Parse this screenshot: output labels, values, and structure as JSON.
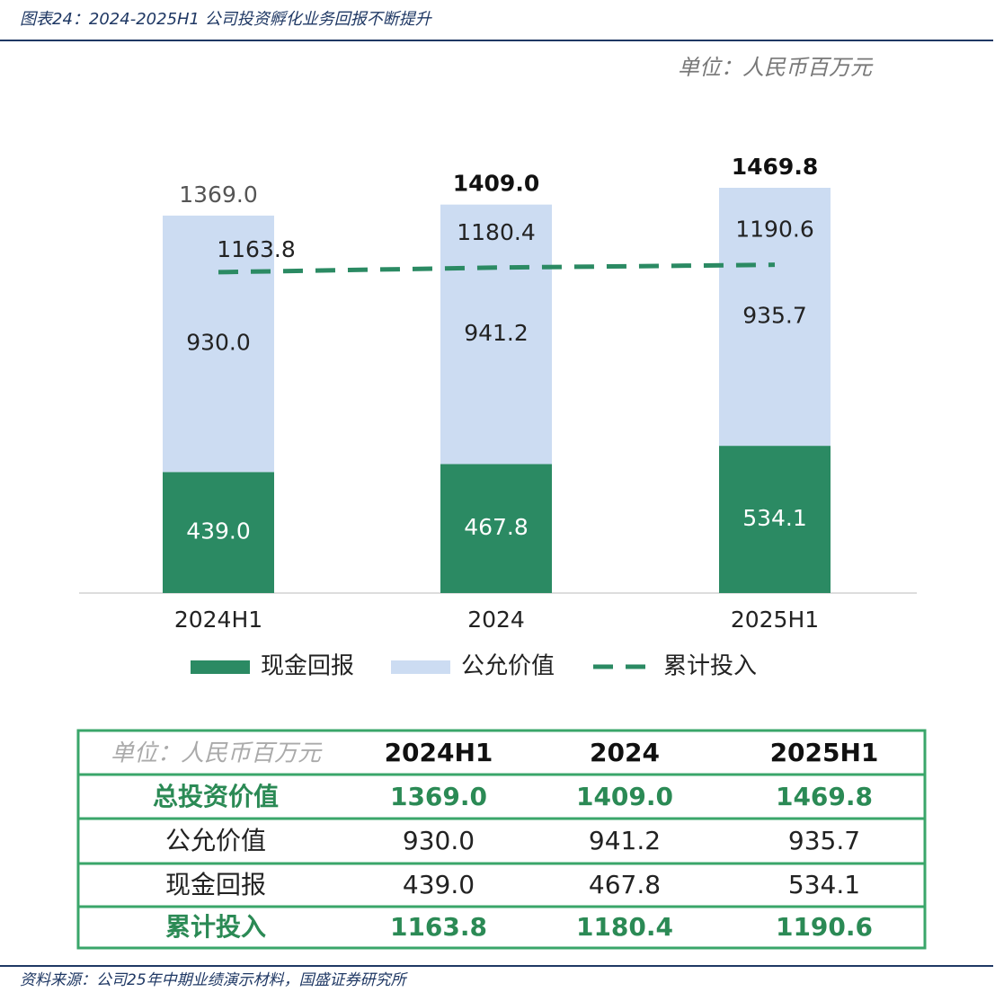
{
  "header": {
    "title": "图表24：2024-2025H1 公司投资孵化业务回报不断提升",
    "unit": "单位：人民币百万元"
  },
  "chart_data": {
    "type": "stacked-bar-line",
    "categories": [
      "2024H1",
      "2024",
      "2025H1"
    ],
    "series": [
      {
        "name": "现金回报",
        "color": "#2b8a63",
        "kind": "bar",
        "values": [
          439.0,
          467.8,
          534.1
        ],
        "value_labels": [
          "439.0",
          "467.8",
          "534.1"
        ]
      },
      {
        "name": "公允价值",
        "color": "#ccdcf2",
        "kind": "bar",
        "values": [
          930.0,
          941.2,
          935.7
        ],
        "value_labels": [
          "930.0",
          "941.2",
          "935.7"
        ]
      },
      {
        "name": "累计投入",
        "color": "#2b8a63",
        "kind": "line",
        "values": [
          1163.8,
          1180.4,
          1190.6
        ],
        "value_labels": [
          "1163.8",
          "1180.4",
          "1190.6"
        ]
      }
    ],
    "totals": {
      "values": [
        1369.0,
        1409.0,
        1469.8
      ],
      "value_labels": [
        "1369.0",
        "1409.0",
        "1469.8"
      ]
    }
  },
  "table": {
    "header": [
      "单位：人民币百万元",
      "2024H1",
      "2024",
      "2025H1"
    ],
    "rows": [
      [
        "总投资价值",
        "1369.0",
        "1409.0",
        "1469.8"
      ],
      [
        "公允价值",
        "930.0",
        "941.2",
        "935.7"
      ],
      [
        "现金回报",
        "439.0",
        "467.8",
        "534.1"
      ],
      [
        "累计投入",
        "1163.8",
        "1180.4",
        "1190.6"
      ]
    ]
  },
  "footer": {
    "source": "资料来源：公司25年中期业绩演示材料，国盛证券研究所"
  }
}
